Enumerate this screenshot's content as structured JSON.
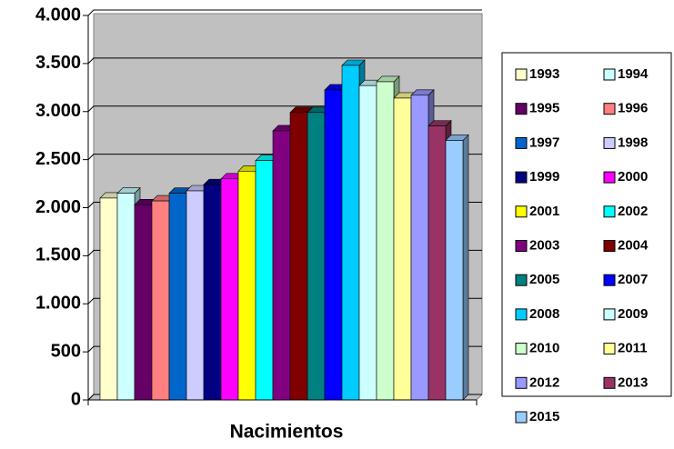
{
  "chart_data": {
    "type": "bar3d",
    "category": "Nacimientos",
    "series": [
      {
        "name": "1993",
        "color": "#ffffcc",
        "values": [
          2100
        ]
      },
      {
        "name": "1994",
        "color": "#ccffff",
        "values": [
          2150
        ]
      },
      {
        "name": "1995",
        "color": "#660066",
        "values": [
          2030
        ]
      },
      {
        "name": "1996",
        "color": "#ff8080",
        "values": [
          2070
        ]
      },
      {
        "name": "1997",
        "color": "#0066cc",
        "values": [
          2150
        ]
      },
      {
        "name": "1998",
        "color": "#ccccff",
        "values": [
          2175
        ]
      },
      {
        "name": "1999",
        "color": "#000080",
        "values": [
          2240
        ]
      },
      {
        "name": "2000",
        "color": "#ff00ff",
        "values": [
          2300
        ]
      },
      {
        "name": "2001",
        "color": "#ffff00",
        "values": [
          2380
        ]
      },
      {
        "name": "2002",
        "color": "#00ffff",
        "values": [
          2490
        ]
      },
      {
        "name": "2003",
        "color": "#800080",
        "values": [
          2800
        ]
      },
      {
        "name": "2004",
        "color": "#800000",
        "values": [
          2990
        ]
      },
      {
        "name": "2005",
        "color": "#008080",
        "values": [
          2990
        ]
      },
      {
        "name": "2007",
        "color": "#0000ff",
        "values": [
          3225
        ]
      },
      {
        "name": "2008",
        "color": "#00ccff",
        "values": [
          3480
        ]
      },
      {
        "name": "2009",
        "color": "#ccffff",
        "values": [
          3270
        ]
      },
      {
        "name": "2010",
        "color": "#ccffcc",
        "values": [
          3310
        ]
      },
      {
        "name": "2011",
        "color": "#ffff99",
        "values": [
          3140
        ]
      },
      {
        "name": "2012",
        "color": "#9999ff",
        "values": [
          3170
        ]
      },
      {
        "name": "2013",
        "color": "#993366",
        "values": [
          2850
        ]
      },
      {
        "name": "2015",
        "color": "#99ccff",
        "values": [
          2700
        ]
      }
    ],
    "ylim": [
      0,
      4000
    ],
    "yticks": [
      0,
      500,
      {
        "value": 1000,
        "label": "1.000"
      },
      {
        "value": 1500,
        "label": "1.500"
      },
      {
        "value": 2000,
        "label": "2.000"
      },
      {
        "value": 2500,
        "label": "2.500"
      },
      {
        "value": 3000,
        "label": "3.000"
      },
      {
        "value": 3500,
        "label": "3.500"
      },
      {
        "value": 4000,
        "label": "4.000"
      }
    ],
    "grid": true,
    "legend": "right"
  }
}
